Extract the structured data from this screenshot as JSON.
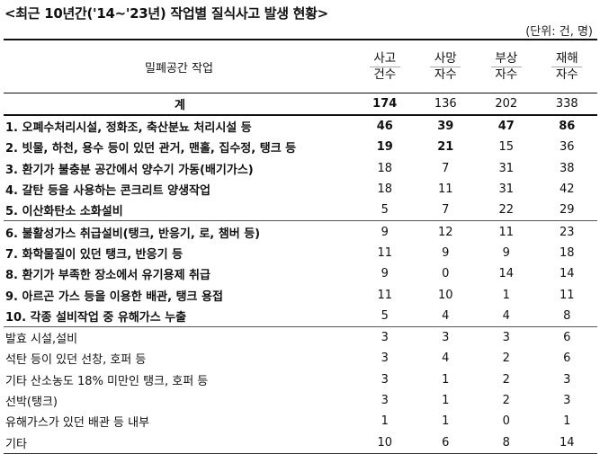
{
  "title": "<최근 10년간('14~'23년) 작업별 질식사고 발생 현황>",
  "unit": "(단위: 건, 명)",
  "header": {
    "work": "밀폐공간 작업",
    "cols": [
      {
        "top": "사고",
        "bot": "건수"
      },
      {
        "top": "사망",
        "bot": "자수"
      },
      {
        "top": "부상",
        "bot": "자수"
      },
      {
        "top": "재해",
        "bot": "자수"
      }
    ]
  },
  "total": {
    "label": "계",
    "values": [
      "174",
      "136",
      "202",
      "338"
    ]
  },
  "rows": [
    {
      "label": "1. 오폐수처리시설, 정화조, 축산분뇨 처리시설 등",
      "values": [
        "46",
        "39",
        "47",
        "86"
      ]
    },
    {
      "label": "2. 빗물, 하천, 용수 등이 있던 관거, 맨홀, 집수정, 탱크 등",
      "values": [
        "19",
        "21",
        "15",
        "36"
      ]
    },
    {
      "label": "3. 환기가 불충분 공간에서 양수기 가동(배기가스)",
      "values": [
        "18",
        "7",
        "31",
        "38"
      ]
    },
    {
      "label": "4. 갈탄 등을 사용하는 콘크리트 양생작업",
      "values": [
        "18",
        "11",
        "31",
        "42"
      ]
    },
    {
      "label": "5. 이산화탄소 소화설비",
      "values": [
        "5",
        "7",
        "22",
        "29"
      ]
    },
    {
      "label": "6. 불활성가스 취급설비(탱크, 반응기, 로, 챔버 등)",
      "values": [
        "9",
        "12",
        "11",
        "23"
      ]
    },
    {
      "label": "7. 화학물질이 있던 탱크, 반응기 등",
      "values": [
        "11",
        "9",
        "9",
        "18"
      ]
    },
    {
      "label": "8. 환기가 부족한 장소에서 유기용제 취급",
      "values": [
        "9",
        "0",
        "14",
        "14"
      ]
    },
    {
      "label": "9. 아르곤 가스 등을 이용한 배관, 탱크 용접",
      "values": [
        "11",
        "10",
        "1",
        "11"
      ]
    },
    {
      "label": "10. 각종 설비작업 중 유해가스 누출",
      "values": [
        "5",
        "4",
        "4",
        "8"
      ]
    },
    {
      "label": "발효 시설,설비",
      "values": [
        "3",
        "3",
        "3",
        "6"
      ]
    },
    {
      "label": "석탄 등이 있던 선창, 호퍼 등",
      "values": [
        "3",
        "4",
        "2",
        "6"
      ]
    },
    {
      "label": "기타 산소농도 18% 미만인 탱크, 호퍼 등",
      "values": [
        "3",
        "1",
        "2",
        "3"
      ]
    },
    {
      "label": "선박(탱크)",
      "values": [
        "3",
        "1",
        "2",
        "3"
      ]
    },
    {
      "label": "유해가스가 있던 배관 등 내부",
      "values": [
        "1",
        "1",
        "0",
        "1"
      ]
    },
    {
      "label": "기타",
      "values": [
        "10",
        "6",
        "8",
        "14"
      ]
    }
  ]
}
